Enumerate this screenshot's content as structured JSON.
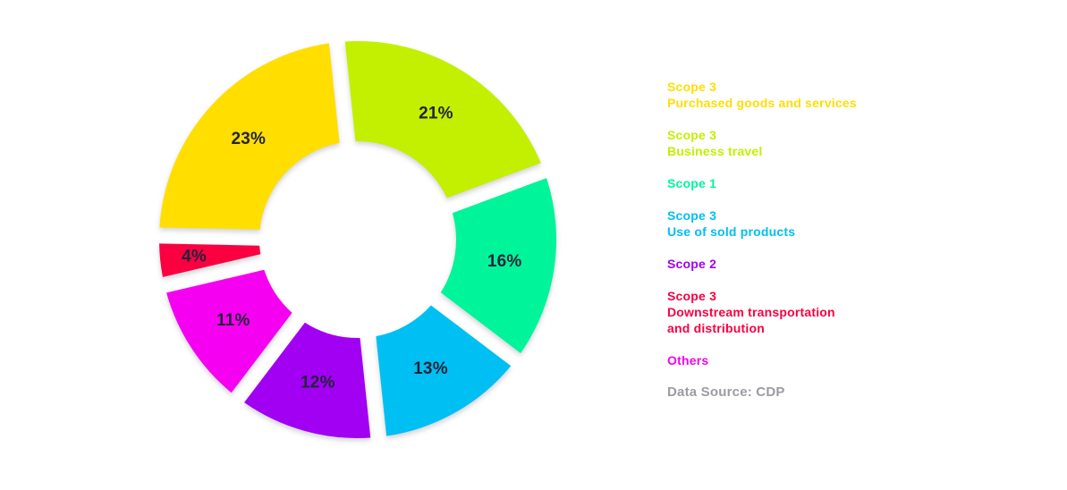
{
  "page": {
    "background_color": "#FFFFFF"
  },
  "chart_data": {
    "type": "pie",
    "subtype": "donut-exploded",
    "title": "",
    "unit": "%",
    "direction": "clockwise",
    "start_angle_deg": -6,
    "hole_radius_ratio": 0.5,
    "label_color": "#23243C",
    "segments": [
      {
        "name": "Scope 3 — Business travel",
        "value": 21,
        "display": "21%",
        "color": "#C2F000"
      },
      {
        "name": "Scope 1",
        "value": 16,
        "display": "16%",
        "color": "#00F59B"
      },
      {
        "name": "Scope 3 — Use of sold products",
        "value": 13,
        "display": "13%",
        "color": "#00BFF2"
      },
      {
        "name": "Scope 2",
        "value": 12,
        "display": "12%",
        "color": "#A100F2"
      },
      {
        "name": "Others",
        "value": 11,
        "display": "11%",
        "color": "#F500F0"
      },
      {
        "name": "Scope 3 — Downstream transportation and distribution",
        "value": 4,
        "display": "4%",
        "color": "#FA0040"
      },
      {
        "name": "Scope 3 — Purchased goods and services",
        "value": 23,
        "display": "23%",
        "color": "#FFDE00"
      }
    ]
  },
  "legend": {
    "items": [
      {
        "lines": [
          "Scope 3",
          "Purchased goods and services"
        ],
        "color": "#FFDE00"
      },
      {
        "lines": [
          "Scope 3",
          "Business travel"
        ],
        "color": "#C2F000"
      },
      {
        "lines": [
          "Scope 1"
        ],
        "color": "#00F59B"
      },
      {
        "lines": [
          "Scope 3",
          "Use of sold products"
        ],
        "color": "#00BFF2"
      },
      {
        "lines": [
          "Scope 2"
        ],
        "color": "#A100F2"
      },
      {
        "lines": [
          "Scope 3",
          "Downstream transportation",
          "and distribution"
        ],
        "color": "#FA0040"
      },
      {
        "lines": [
          "Others"
        ],
        "color": "#F500F0"
      }
    ],
    "data_source": "Data Source: CDP",
    "data_source_color": "#9B9BA3"
  }
}
